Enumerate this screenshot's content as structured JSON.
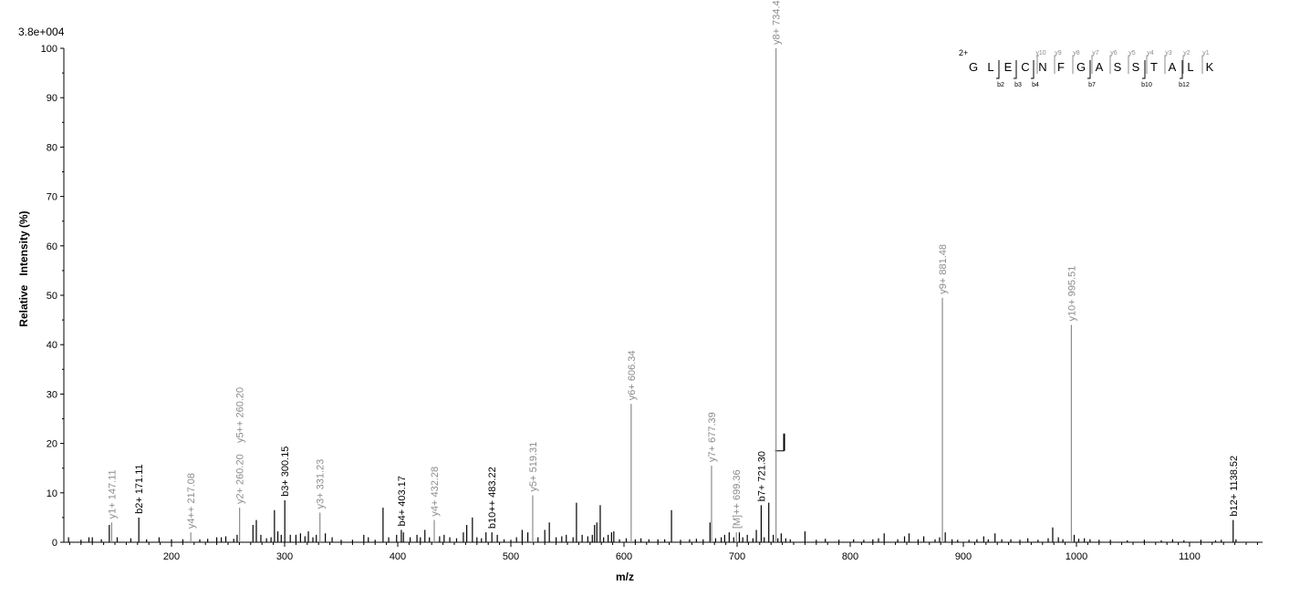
{
  "chart_data": {
    "type": "bar",
    "max_intensity_label": "3.8e+004",
    "xlabel": "m/z",
    "ylabel": "Relative   Intensity (%)",
    "xlim": [
      100,
      1165
    ],
    "ylim": [
      0,
      100
    ],
    "x_ticks": [
      200,
      300,
      400,
      500,
      600,
      700,
      800,
      900,
      1000,
      1100
    ],
    "y_ticks": [
      0,
      10,
      20,
      30,
      40,
      50,
      60,
      70,
      80,
      90,
      100
    ],
    "colors": {
      "y_ion": "#8c8c8c",
      "b_ion": "#000000",
      "noise": "#000000"
    },
    "labeled_peaks": [
      {
        "mz": 147.11,
        "intensity": 4,
        "label": "y1+ 147.11",
        "ion": "y"
      },
      {
        "mz": 171.11,
        "intensity": 5,
        "label": "b2+ 171.11",
        "ion": "b"
      },
      {
        "mz": 217.08,
        "intensity": 2,
        "label": "y4++ 217.08",
        "ion": "y"
      },
      {
        "mz": 260.2,
        "intensity": 7,
        "label": "y2+ 260.20",
        "ion": "y"
      },
      {
        "mz": 260.2,
        "intensity": 7,
        "label": "y5++ 260.20",
        "ion": "y",
        "stacked": true
      },
      {
        "mz": 300.15,
        "intensity": 8.5,
        "label": "b3+ 300.15",
        "ion": "b"
      },
      {
        "mz": 331.23,
        "intensity": 6,
        "label": "y3+ 331.23",
        "ion": "y"
      },
      {
        "mz": 403.17,
        "intensity": 2.5,
        "label": "b4+ 403.17",
        "ion": "b"
      },
      {
        "mz": 432.28,
        "intensity": 4.5,
        "label": "y4+ 432.28",
        "ion": "y"
      },
      {
        "mz": 483.22,
        "intensity": 2,
        "label": "b10++ 483.22",
        "ion": "b"
      },
      {
        "mz": 519.31,
        "intensity": 9.5,
        "label": "y5+ 519.31",
        "ion": "y"
      },
      {
        "mz": 606.34,
        "intensity": 28,
        "label": "y6+ 606.34",
        "ion": "y"
      },
      {
        "mz": 677.39,
        "intensity": 15.5,
        "label": "y7+ 677.39",
        "ion": "y"
      },
      {
        "mz": 699.36,
        "intensity": 2,
        "label": "[M]++ 699.36",
        "ion": "y"
      },
      {
        "mz": 721.3,
        "intensity": 7.5,
        "label": "b7+ 721.30",
        "ion": "b"
      },
      {
        "mz": 734.4,
        "intensity": 100,
        "label": "y8+ 734.40",
        "ion": "y"
      },
      {
        "mz": 881.48,
        "intensity": 49.5,
        "label": "y9+ 881.48",
        "ion": "y"
      },
      {
        "mz": 995.51,
        "intensity": 44,
        "label": "y10+ 995.51",
        "ion": "y"
      },
      {
        "mz": 1138.52,
        "intensity": 4.5,
        "label": "b12+ 1138.52",
        "ion": "b"
      }
    ],
    "unlabeled_peaks": [
      [
        109,
        1
      ],
      [
        120,
        0.5
      ],
      [
        127,
        1
      ],
      [
        130,
        1
      ],
      [
        138,
        0.6
      ],
      [
        145,
        3.5
      ],
      [
        152,
        1
      ],
      [
        164,
        0.8
      ],
      [
        178,
        0.6
      ],
      [
        189,
        1
      ],
      [
        200,
        0.6
      ],
      [
        210,
        0.6
      ],
      [
        225,
        0.6
      ],
      [
        232,
        0.7
      ],
      [
        240,
        1
      ],
      [
        244,
        1
      ],
      [
        248,
        1.2
      ],
      [
        255,
        0.7
      ],
      [
        258,
        1.5
      ],
      [
        272,
        3.5
      ],
      [
        275,
        4.5
      ],
      [
        279,
        1.5
      ],
      [
        284,
        0.8
      ],
      [
        288,
        1
      ],
      [
        291,
        6.5
      ],
      [
        294,
        2.2
      ],
      [
        297,
        1.5
      ],
      [
        305,
        1.5
      ],
      [
        310,
        1.5
      ],
      [
        314,
        1.8
      ],
      [
        318,
        1.2
      ],
      [
        321,
        2.2
      ],
      [
        325,
        1
      ],
      [
        328,
        1.5
      ],
      [
        336,
        1.8
      ],
      [
        342,
        1
      ],
      [
        350,
        0.5
      ],
      [
        360,
        0.5
      ],
      [
        370,
        1.5
      ],
      [
        374,
        1
      ],
      [
        380,
        0.5
      ],
      [
        387,
        7
      ],
      [
        392,
        1
      ],
      [
        399,
        1.5
      ],
      [
        405,
        2
      ],
      [
        411,
        1
      ],
      [
        417,
        1.5
      ],
      [
        420,
        1
      ],
      [
        424,
        2.5
      ],
      [
        428,
        1
      ],
      [
        437,
        1.2
      ],
      [
        441,
        1.5
      ],
      [
        446,
        1
      ],
      [
        452,
        0.8
      ],
      [
        458,
        2
      ],
      [
        461,
        3.5
      ],
      [
        466,
        5
      ],
      [
        470,
        1
      ],
      [
        474,
        0.8
      ],
      [
        478,
        2
      ],
      [
        488,
        1.5
      ],
      [
        494,
        0.6
      ],
      [
        500,
        0.5
      ],
      [
        505,
        1
      ],
      [
        510,
        2.5
      ],
      [
        515,
        2
      ],
      [
        524,
        1
      ],
      [
        530,
        2.5
      ],
      [
        534,
        4
      ],
      [
        540,
        1
      ],
      [
        545,
        1.2
      ],
      [
        549,
        1.5
      ],
      [
        555,
        1
      ],
      [
        558,
        8
      ],
      [
        563,
        1.5
      ],
      [
        568,
        1.2
      ],
      [
        572,
        1.5
      ],
      [
        574,
        3.5
      ],
      [
        576,
        4
      ],
      [
        579,
        7.5
      ],
      [
        582,
        1
      ],
      [
        586,
        1.5
      ],
      [
        589,
        2
      ],
      [
        591,
        2.2
      ],
      [
        596,
        0.6
      ],
      [
        602,
        0.8
      ],
      [
        610,
        0.6
      ],
      [
        615,
        0.8
      ],
      [
        622,
        0.6
      ],
      [
        630,
        0.6
      ],
      [
        636,
        0.6
      ],
      [
        642,
        6.5
      ],
      [
        650,
        0.5
      ],
      [
        658,
        0.6
      ],
      [
        664,
        0.7
      ],
      [
        670,
        0.6
      ],
      [
        676,
        4
      ],
      [
        681,
        0.8
      ],
      [
        686,
        1
      ],
      [
        689,
        1.5
      ],
      [
        693,
        2
      ],
      [
        697,
        1
      ],
      [
        702,
        2
      ],
      [
        705,
        1
      ],
      [
        709,
        1.5
      ],
      [
        714,
        0.8
      ],
      [
        717,
        2.5
      ],
      [
        724,
        1
      ],
      [
        728,
        8
      ],
      [
        732,
        1.5
      ],
      [
        736,
        0.8
      ],
      [
        739,
        1.8
      ],
      [
        743,
        0.8
      ],
      [
        747,
        0.6
      ],
      [
        760,
        2.2
      ],
      [
        770,
        0.5
      ],
      [
        778,
        0.7
      ],
      [
        790,
        0.5
      ],
      [
        803,
        0.6
      ],
      [
        812,
        0.5
      ],
      [
        820,
        0.6
      ],
      [
        825,
        0.8
      ],
      [
        830,
        1.8
      ],
      [
        842,
        0.6
      ],
      [
        848,
        1.2
      ],
      [
        852,
        1.8
      ],
      [
        860,
        0.6
      ],
      [
        865,
        1.2
      ],
      [
        875,
        0.6
      ],
      [
        879,
        1
      ],
      [
        884,
        2
      ],
      [
        890,
        0.6
      ],
      [
        895,
        0.5
      ],
      [
        905,
        0.5
      ],
      [
        912,
        0.6
      ],
      [
        918,
        1.2
      ],
      [
        922,
        0.6
      ],
      [
        928,
        1.8
      ],
      [
        934,
        0.6
      ],
      [
        942,
        0.6
      ],
      [
        950,
        0.5
      ],
      [
        957,
        0.8
      ],
      [
        966,
        0.5
      ],
      [
        975,
        0.8
      ],
      [
        979,
        3
      ],
      [
        984,
        1
      ],
      [
        988,
        0.6
      ],
      [
        998,
        1.5
      ],
      [
        1002,
        0.7
      ],
      [
        1007,
        0.8
      ],
      [
        1012,
        0.6
      ],
      [
        1020,
        0.5
      ],
      [
        1030,
        0.5
      ],
      [
        1045,
        0.4
      ],
      [
        1060,
        0.5
      ],
      [
        1075,
        0.4
      ],
      [
        1085,
        0.6
      ],
      [
        1095,
        0.4
      ],
      [
        1110,
        0.5
      ],
      [
        1123,
        0.4
      ],
      [
        1128,
        0.5
      ],
      [
        1141,
        0.6
      ]
    ],
    "precursor_marker": {
      "mz": 733.5,
      "intensity": 22
    }
  },
  "sequence": {
    "charge": "2+",
    "residues": [
      "G",
      "L",
      "E",
      "C",
      "N",
      "F",
      "G",
      "A",
      "S",
      "S",
      "T",
      "A",
      "L",
      "K"
    ],
    "y_ions": [
      "y10",
      "y9",
      "y8",
      "y7",
      "y6",
      "y5",
      "y4",
      "y3",
      "y2",
      "y1"
    ],
    "b_ions": [
      "b2",
      "b3",
      "b4",
      "b7",
      "b10",
      "b12"
    ]
  }
}
